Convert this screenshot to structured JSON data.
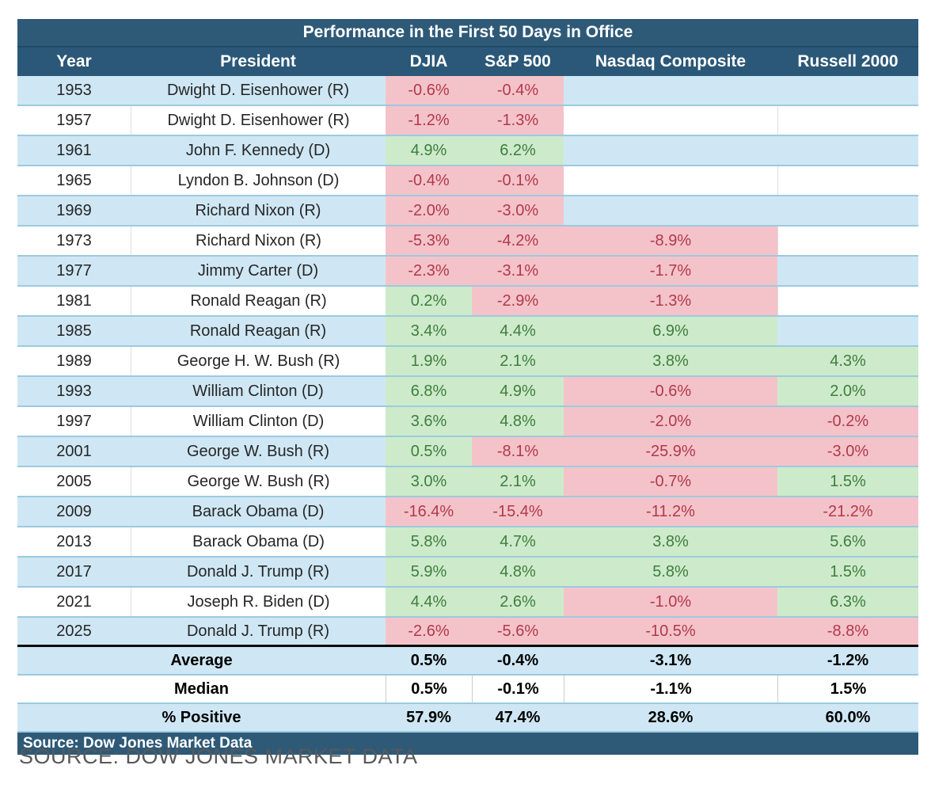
{
  "colors": {
    "header_blue": "#2e5a78",
    "header_row_blue": "#2b5878",
    "row_blue": "#cfe7f4",
    "row_white": "#ffffff",
    "row_divider": "#9ccadf",
    "positive_bg": "#cdebca",
    "positive_text": "#3f7d3f",
    "negative_bg": "#f4c3ca",
    "negative_text": "#b1394a",
    "source_bar_bg": "#2e5a78",
    "caption_text": "#58595b"
  },
  "chart_data": {
    "type": "table",
    "title": "Performance in the First 50 Days in Office",
    "columns": [
      "Year",
      "President",
      "DJIA",
      "S&P 500",
      "Nasdaq Composite",
      "Russell 2000"
    ],
    "rows": [
      {
        "year": "1953",
        "president": "Dwight D. Eisenhower (R)",
        "djia": "-0.6%",
        "sp500": "-0.4%",
        "nasdaq": "",
        "russell": ""
      },
      {
        "year": "1957",
        "president": "Dwight D. Eisenhower (R)",
        "djia": "-1.2%",
        "sp500": "-1.3%",
        "nasdaq": "",
        "russell": ""
      },
      {
        "year": "1961",
        "president": "John F. Kennedy (D)",
        "djia": "4.9%",
        "sp500": "6.2%",
        "nasdaq": "",
        "russell": ""
      },
      {
        "year": "1965",
        "president": "Lyndon B. Johnson (D)",
        "djia": "-0.4%",
        "sp500": "-0.1%",
        "nasdaq": "",
        "russell": ""
      },
      {
        "year": "1969",
        "president": "Richard Nixon (R)",
        "djia": "-2.0%",
        "sp500": "-3.0%",
        "nasdaq": "",
        "russell": ""
      },
      {
        "year": "1973",
        "president": "Richard Nixon (R)",
        "djia": "-5.3%",
        "sp500": "-4.2%",
        "nasdaq": "-8.9%",
        "russell": ""
      },
      {
        "year": "1977",
        "president": "Jimmy Carter (D)",
        "djia": "-2.3%",
        "sp500": "-3.1%",
        "nasdaq": "-1.7%",
        "russell": ""
      },
      {
        "year": "1981",
        "president": "Ronald Reagan (R)",
        "djia": "0.2%",
        "sp500": "-2.9%",
        "nasdaq": "-1.3%",
        "russell": ""
      },
      {
        "year": "1985",
        "president": "Ronald Reagan (R)",
        "djia": "3.4%",
        "sp500": "4.4%",
        "nasdaq": "6.9%",
        "russell": ""
      },
      {
        "year": "1989",
        "president": "George H. W. Bush (R)",
        "djia": "1.9%",
        "sp500": "2.1%",
        "nasdaq": "3.8%",
        "russell": "4.3%"
      },
      {
        "year": "1993",
        "president": "William Clinton (D)",
        "djia": "6.8%",
        "sp500": "4.9%",
        "nasdaq": "-0.6%",
        "russell": "2.0%"
      },
      {
        "year": "1997",
        "president": "William Clinton (D)",
        "djia": "3.6%",
        "sp500": "4.8%",
        "nasdaq": "-2.0%",
        "russell": "-0.2%"
      },
      {
        "year": "2001",
        "president": "George W. Bush (R)",
        "djia": "0.5%",
        "sp500": "-8.1%",
        "nasdaq": "-25.9%",
        "russell": "-3.0%"
      },
      {
        "year": "2005",
        "president": "George W. Bush (R)",
        "djia": "3.0%",
        "sp500": "2.1%",
        "nasdaq": "-0.7%",
        "russell": "1.5%"
      },
      {
        "year": "2009",
        "president": "Barack Obama (D)",
        "djia": "-16.4%",
        "sp500": "-15.4%",
        "nasdaq": "-11.2%",
        "russell": "-21.2%"
      },
      {
        "year": "2013",
        "president": "Barack Obama (D)",
        "djia": "5.8%",
        "sp500": "4.7%",
        "nasdaq": "3.8%",
        "russell": "5.6%"
      },
      {
        "year": "2017",
        "president": "Donald J. Trump (R)",
        "djia": "5.9%",
        "sp500": "4.8%",
        "nasdaq": "5.8%",
        "russell": "1.5%"
      },
      {
        "year": "2021",
        "president": "Joseph R. Biden (D)",
        "djia": "4.4%",
        "sp500": "2.6%",
        "nasdaq": "-1.0%",
        "russell": "6.3%"
      },
      {
        "year": "2025",
        "president": "Donald J. Trump (R)",
        "djia": "-2.6%",
        "sp500": "-5.6%",
        "nasdaq": "-10.5%",
        "russell": "-8.8%"
      }
    ],
    "summary_rows": [
      {
        "label": "Average",
        "djia": "0.5%",
        "sp500": "-0.4%",
        "nasdaq": "-3.1%",
        "russell": "-1.2%"
      },
      {
        "label": "Median",
        "djia": "0.5%",
        "sp500": "-0.1%",
        "nasdaq": "-1.1%",
        "russell": "1.5%"
      },
      {
        "label": "% Positive",
        "djia": "57.9%",
        "sp500": "47.4%",
        "nasdaq": "28.6%",
        "russell": "60.0%"
      }
    ],
    "source_bar": "Source: Dow Jones Market Data"
  },
  "caption": "SOURCE: DOW JONES MARKET DATA"
}
